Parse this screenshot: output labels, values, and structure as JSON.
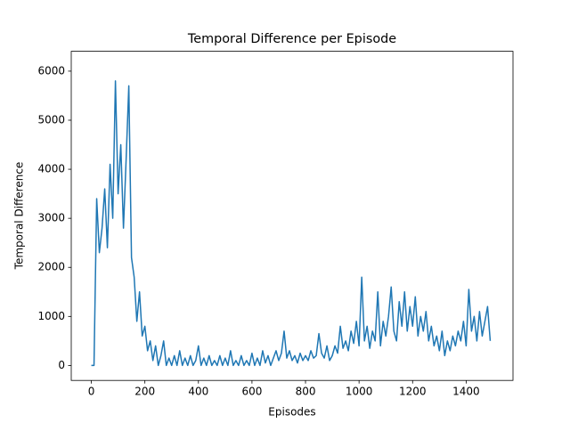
{
  "chart_data": {
    "type": "line",
    "title": "Temporal Difference per Episode",
    "xlabel": "Episodes",
    "ylabel": "Temporal Difference",
    "x": [
      0,
      10,
      20,
      30,
      40,
      50,
      60,
      70,
      80,
      90,
      100,
      110,
      120,
      130,
      140,
      150,
      160,
      170,
      180,
      190,
      200,
      210,
      220,
      230,
      240,
      250,
      260,
      270,
      280,
      290,
      300,
      310,
      320,
      330,
      340,
      350,
      360,
      370,
      380,
      390,
      400,
      410,
      420,
      430,
      440,
      450,
      460,
      470,
      480,
      490,
      500,
      510,
      520,
      530,
      540,
      550,
      560,
      570,
      580,
      590,
      600,
      610,
      620,
      630,
      640,
      650,
      660,
      670,
      680,
      690,
      700,
      710,
      720,
      730,
      740,
      750,
      760,
      770,
      780,
      790,
      800,
      810,
      820,
      830,
      840,
      850,
      860,
      870,
      880,
      890,
      900,
      910,
      920,
      930,
      940,
      950,
      960,
      970,
      980,
      990,
      1000,
      1010,
      1020,
      1030,
      1040,
      1050,
      1060,
      1070,
      1080,
      1090,
      1100,
      1110,
      1120,
      1130,
      1140,
      1150,
      1160,
      1170,
      1180,
      1190,
      1200,
      1210,
      1220,
      1230,
      1240,
      1250,
      1260,
      1270,
      1280,
      1290,
      1300,
      1310,
      1320,
      1330,
      1340,
      1350,
      1360,
      1370,
      1380,
      1390,
      1400,
      1410,
      1420,
      1430,
      1440,
      1450,
      1460,
      1470,
      1480,
      1490
    ],
    "series": [
      {
        "color": "#1f77b4",
        "values": [
          0,
          0,
          3400,
          2300,
          2800,
          3600,
          2400,
          4100,
          3000,
          5800,
          3500,
          4500,
          2800,
          4200,
          5700,
          2200,
          1800,
          900,
          1500,
          600,
          800,
          300,
          500,
          100,
          400,
          0,
          200,
          500,
          0,
          150,
          0,
          200,
          0,
          300,
          0,
          150,
          0,
          200,
          0,
          100,
          400,
          0,
          150,
          0,
          200,
          0,
          100,
          0,
          200,
          0,
          150,
          0,
          300,
          0,
          100,
          0,
          200,
          0,
          100,
          0,
          250,
          0,
          150,
          0,
          300,
          50,
          200,
          0,
          150,
          300,
          100,
          250,
          700,
          150,
          300,
          100,
          200,
          50,
          250,
          100,
          200,
          100,
          300,
          150,
          200,
          650,
          250,
          150,
          400,
          100,
          200,
          400,
          250,
          800,
          350,
          500,
          300,
          700,
          450,
          900,
          400,
          1800,
          500,
          800,
          350,
          700,
          500,
          1500,
          400,
          900,
          600,
          1000,
          1600,
          700,
          500,
          1300,
          800,
          1500,
          700,
          1200,
          800,
          1400,
          600,
          1000,
          700,
          1100,
          500,
          800,
          400,
          600,
          300,
          700,
          200,
          500,
          300,
          600,
          400,
          700,
          500,
          900,
          400,
          1550,
          700,
          1000,
          500,
          1100,
          600,
          900,
          1200,
          500
        ]
      }
    ],
    "xlim": [
      -75,
      1575
    ],
    "ylim": [
      -305,
      6405
    ],
    "xticks": [
      0,
      200,
      400,
      600,
      800,
      1000,
      1200,
      1400
    ],
    "yticks": [
      0,
      1000,
      2000,
      3000,
      4000,
      5000,
      6000
    ]
  }
}
